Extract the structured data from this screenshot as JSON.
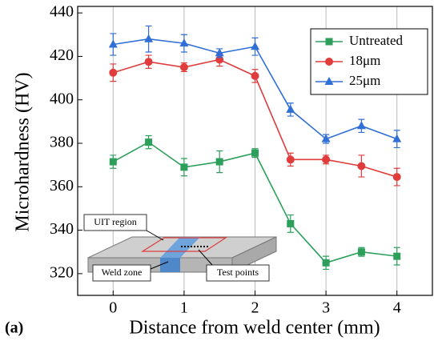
{
  "chart_data": {
    "type": "line",
    "xlabel": "Distance from weld center (mm)",
    "ylabel": "Microhardness (HV)",
    "panel_label": "(a)",
    "x": [
      0,
      0.5,
      1,
      1.5,
      2,
      2.5,
      3,
      3.5,
      4
    ],
    "series": [
      {
        "name": "Untreated",
        "color": "#2ca05a",
        "marker": "square",
        "values": [
          371.5,
          380.5,
          369,
          371.5,
          375.5,
          343,
          325,
          330,
          328
        ],
        "errors": [
          3,
          3,
          4,
          5,
          2,
          4,
          3,
          2,
          4
        ]
      },
      {
        "name": "18μm",
        "color": "#e03c3c",
        "marker": "circle",
        "values": [
          412.5,
          417.5,
          415,
          418.5,
          411,
          372.5,
          372.5,
          369.5,
          364.5
        ],
        "errors": [
          4,
          3,
          2,
          3,
          3,
          3,
          2,
          5,
          4
        ]
      },
      {
        "name": "25μm",
        "color": "#2f6fd6",
        "marker": "triangle",
        "values": [
          425.5,
          428,
          426,
          421.5,
          424.5,
          395.5,
          382,
          388,
          382
        ],
        "errors": [
          5,
          6,
          4,
          2,
          4,
          3,
          2,
          3,
          4
        ]
      }
    ],
    "xlim": [
      -0.5,
      4.5
    ],
    "xticks": [
      0,
      1,
      2,
      3,
      4
    ],
    "ylim": [
      310,
      443
    ],
    "yticks": [
      320,
      340,
      360,
      380,
      400,
      420,
      440
    ],
    "grid": "x",
    "legend": "upper right",
    "inset_labels": [
      "UIT region",
      "Weld zone",
      "Test points"
    ]
  }
}
